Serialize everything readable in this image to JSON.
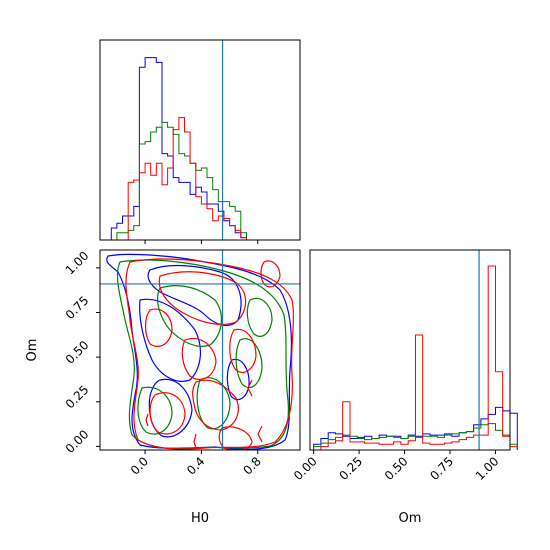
{
  "chart_data": {
    "type": "corner",
    "parameters": [
      "H0",
      "Om"
    ],
    "truths": {
      "H0": 0.55,
      "Om": 0.91
    },
    "truth_color": "#1f77b4",
    "series": [
      {
        "color": "#0000ff"
      },
      {
        "color": "#008000"
      },
      {
        "color": "#ff0000"
      }
    ],
    "panels": {
      "H0_marginal": {
        "x_range": [
          -0.32,
          1.1
        ],
        "xticks": [
          0.0,
          0.4,
          0.8
        ],
        "bin_width": 0.04,
        "x_start": -0.24,
        "counts": [
          [
            5,
            7,
            10,
            10,
            14,
            72,
            76,
            76,
            74,
            36,
            35,
            26,
            24,
            24,
            19,
            22,
            20,
            15,
            15,
            12,
            8,
            6,
            3,
            1
          ],
          [
            0,
            3,
            3,
            4,
            6,
            40,
            41,
            45,
            47,
            49,
            47,
            44,
            36,
            35,
            32,
            29,
            30,
            26,
            21,
            16,
            16,
            14,
            12,
            3
          ],
          [
            0,
            0,
            0,
            24,
            25,
            28,
            32,
            27,
            32,
            23,
            30,
            46,
            51,
            45,
            32,
            18,
            15,
            13,
            8,
            10,
            9,
            6,
            4,
            1
          ]
        ]
      },
      "Om_marginal": {
        "x_range": [
          -0.02,
          1.08
        ],
        "xticks": [
          0.0,
          0.25,
          0.5,
          0.75,
          1.0
        ],
        "xticklabels": [
          "0.00",
          "0.25",
          "0.50",
          "0.75",
          "1.00"
        ],
        "bin_width": 0.04,
        "x_start": 0.0,
        "counts": [
          [
            5,
            10,
            15,
            14,
            12,
            10,
            11,
            12,
            10,
            13,
            12,
            12,
            10,
            13,
            12,
            14,
            13,
            13,
            14,
            12,
            15,
            16,
            22,
            27,
            31,
            37,
            34,
            32
          ],
          [
            3,
            6,
            9,
            11,
            13,
            12,
            10,
            9,
            10,
            11,
            12,
            11,
            10,
            12,
            11,
            12,
            12,
            11,
            13,
            14,
            15,
            16,
            19,
            22,
            23,
            17,
            13,
            5
          ],
          [
            0,
            3,
            6,
            8,
            42,
            7,
            7,
            6,
            6,
            5,
            5,
            7,
            5,
            8,
            100,
            6,
            5,
            5,
            6,
            7,
            9,
            11,
            13,
            13,
            160,
            68,
            12,
            3
          ]
        ]
      },
      "H0_Om_2d": {
        "x_range": [
          -0.32,
          1.1
        ],
        "y_range": [
          -0.02,
          1.1
        ],
        "xticks": [
          0.0,
          0.4,
          0.8
        ],
        "yticks": [
          0.0,
          0.25,
          0.5,
          0.75,
          1.0
        ],
        "yticklabels": [
          "0.00",
          "0.25",
          "0.50",
          "0.75",
          "1.00"
        ]
      }
    },
    "xlabel_left": "H0",
    "xlabel_right": "Om",
    "ylabel_left": "Om"
  }
}
